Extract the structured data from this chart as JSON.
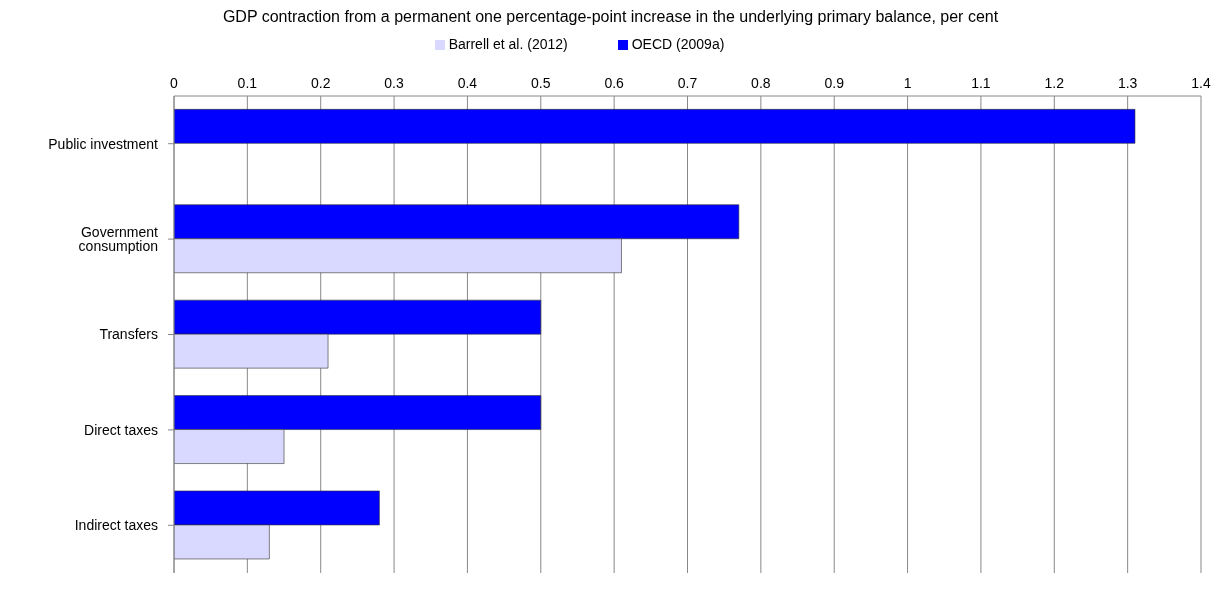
{
  "chart_data": {
    "type": "bar",
    "orientation": "horizontal",
    "title": "GDP contraction from a permanent one percentage-point increase in the underlying primary balance, per cent",
    "categories": [
      "Public investment",
      "Government consumption",
      "Transfers",
      "Direct taxes",
      "Indirect taxes"
    ],
    "series": [
      {
        "name": "OECD (2009a)",
        "color": "#0000ff",
        "values": [
          1.31,
          0.77,
          0.5,
          0.5,
          0.28
        ]
      },
      {
        "name": "Barrell et al. (2012)",
        "color": "#d9d9ff",
        "values": [
          null,
          0.61,
          0.21,
          0.15,
          0.13
        ]
      }
    ],
    "xlim": [
      0,
      1.4
    ],
    "xticks": [
      0,
      0.1,
      0.2,
      0.3,
      0.4,
      0.5,
      0.6,
      0.7,
      0.8,
      0.9,
      1,
      1.1,
      1.2,
      1.3,
      1.4
    ],
    "grid": "x",
    "legend": "top"
  }
}
